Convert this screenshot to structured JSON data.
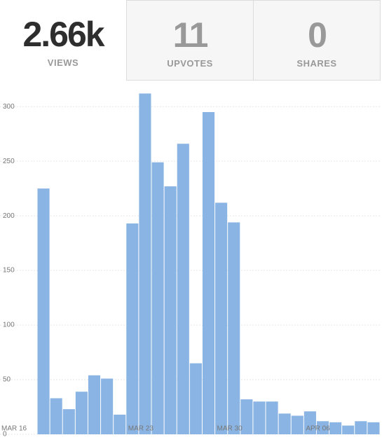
{
  "tabs": [
    {
      "value": "2.66k",
      "label": "VIEWS"
    },
    {
      "value": "11",
      "label": "UPVOTES"
    },
    {
      "value": "0",
      "label": "SHARES"
    }
  ],
  "chart_data": {
    "type": "bar",
    "categories": [
      "MAR 16",
      null,
      null,
      null,
      null,
      null,
      null,
      "MAR 23",
      null,
      null,
      null,
      null,
      null,
      null,
      "MAR 30",
      null,
      null,
      null,
      null,
      null,
      null,
      "APR 06",
      null,
      null,
      null,
      null,
      null
    ],
    "values": [
      225,
      33,
      23,
      39,
      54,
      51,
      18,
      193,
      312,
      249,
      227,
      266,
      65,
      295,
      212,
      194,
      32,
      30,
      30,
      19,
      17,
      21,
      12,
      11,
      8,
      12,
      11
    ],
    "color": "#8ab4e3",
    "ylim": [
      0,
      320
    ],
    "yticks": [
      0,
      50,
      100,
      150,
      200,
      250,
      300
    ],
    "grid": true
  }
}
